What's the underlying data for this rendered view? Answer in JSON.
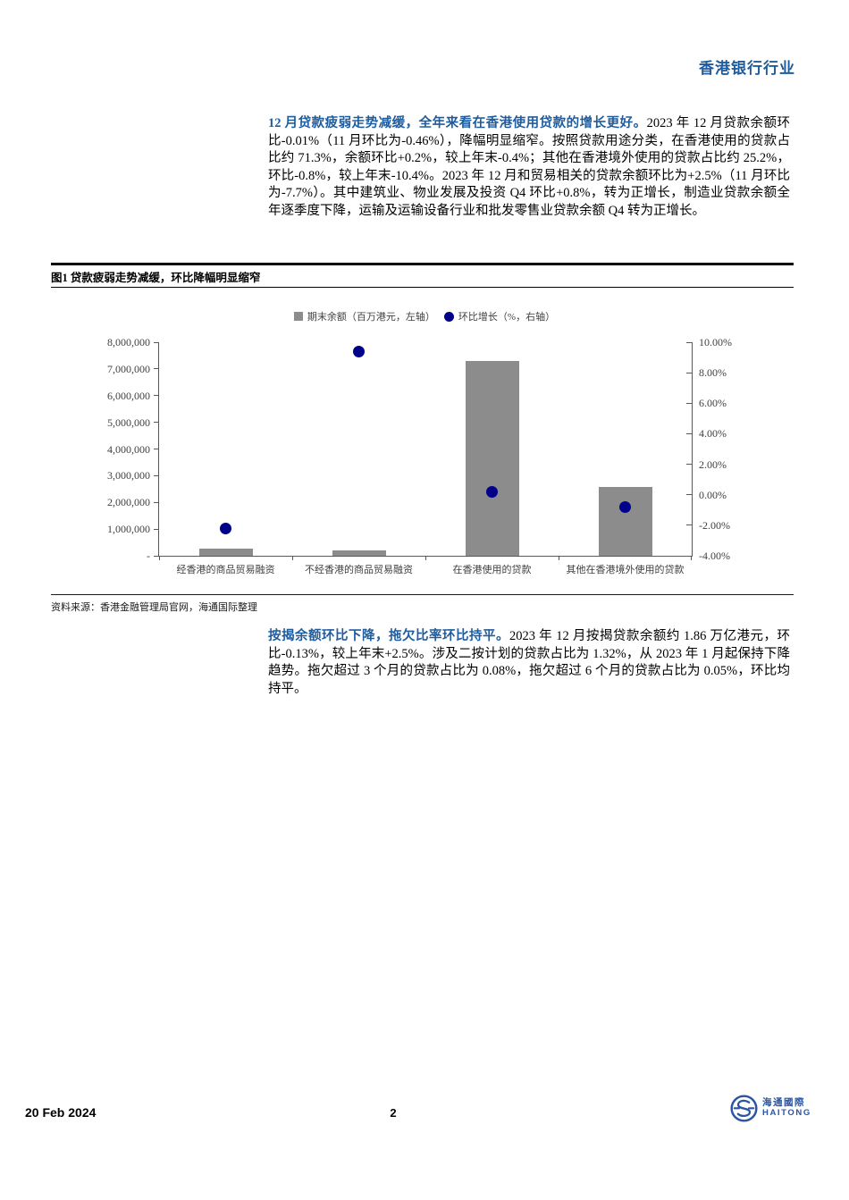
{
  "page": {
    "header_title": "香港银行行业",
    "footer": {
      "date": "20 Feb 2024",
      "page_number": "2",
      "logo_cn": "海通國際",
      "logo_en": "HAITONG"
    }
  },
  "colors": {
    "accent_blue": "#1f5c9e",
    "bar_gray": "#8c8c8c",
    "dot_navy": "#00008b",
    "logo_blue": "#2b55a2"
  },
  "paragraphs": [
    {
      "lead": "12 月贷款疲弱走势减缓，全年来看在香港使用贷款的增长更好。",
      "body": "2023 年 12 月贷款余额环比-0.01%（11 月环比为-0.46%），降幅明显缩窄。按照贷款用途分类，在香港使用的贷款占比约 71.3%，余额环比+0.2%，较上年末-0.4%；其他在香港境外使用的贷款占比约 25.2%，环比-0.8%，较上年末-10.4%。2023 年 12 月和贸易相关的贷款余额环比为+2.5%（11 月环比为-7.7%）。其中建筑业、物业发展及投资 Q4 环比+0.8%，转为正增长，制造业贷款余额全年逐季度下降，运输及运输设备行业和批发零售业贷款余额 Q4 转为正增长。"
    },
    {
      "lead": "按揭余额环比下降，拖欠比率环比持平。",
      "body": "2023 年 12 月按揭贷款余额约 1.86 万亿港元，环比-0.13%，较上年末+2.5%。涉及二按计划的贷款占比为 1.32%，从 2023 年 1 月起保持下降趋势。拖欠超过 3 个月的贷款占比为 0.08%，拖欠超过 6 个月的贷款占比为 0.05%，环比均持平。"
    }
  ],
  "figure": {
    "title": "图1  贷款疲弱走势减缓，环比降幅明显缩窄",
    "source": "资料来源：香港金融管理局官网，海通国际整理"
  },
  "chart_data": {
    "type": "bar",
    "title": "图1  贷款疲弱走势减缓，环比降幅明显缩窄",
    "legend_position": "top",
    "grid": false,
    "categories": [
      "经香港的商品贸易融资",
      "不经香港的商品贸易融资",
      "在香港使用的贷款",
      "其他在香港境外使用的贷款"
    ],
    "series": [
      {
        "name": "期末余额（百万港元，左轴）",
        "kind": "bar",
        "axis": "left",
        "color": "#8c8c8c",
        "values": [
          270000,
          210000,
          7300000,
          2580000
        ]
      },
      {
        "name": "环比增长（%，右轴）",
        "kind": "scatter",
        "axis": "right",
        "color": "#00008b",
        "values": [
          -2.2,
          9.4,
          0.2,
          -0.8
        ]
      }
    ],
    "left_axis": {
      "min": 0,
      "max": 8000000,
      "ticks": [
        {
          "label": "8,000,000",
          "value": 8000000
        },
        {
          "label": "7,000,000",
          "value": 7000000
        },
        {
          "label": "6,000,000",
          "value": 6000000
        },
        {
          "label": "5,000,000",
          "value": 5000000
        },
        {
          "label": "4,000,000",
          "value": 4000000
        },
        {
          "label": "3,000,000",
          "value": 3000000
        },
        {
          "label": "2,000,000",
          "value": 2000000
        },
        {
          "label": "1,000,000",
          "value": 1000000
        },
        {
          "label": "-",
          "value": 0
        }
      ]
    },
    "right_axis": {
      "min": -4,
      "max": 10,
      "ticks": [
        {
          "label": "10.00%",
          "value": 10
        },
        {
          "label": "8.00%",
          "value": 8
        },
        {
          "label": "6.00%",
          "value": 6
        },
        {
          "label": "4.00%",
          "value": 4
        },
        {
          "label": "2.00%",
          "value": 2
        },
        {
          "label": "0.00%",
          "value": 0
        },
        {
          "label": "-2.00%",
          "value": -2
        },
        {
          "label": "-4.00%",
          "value": -4
        }
      ]
    }
  }
}
